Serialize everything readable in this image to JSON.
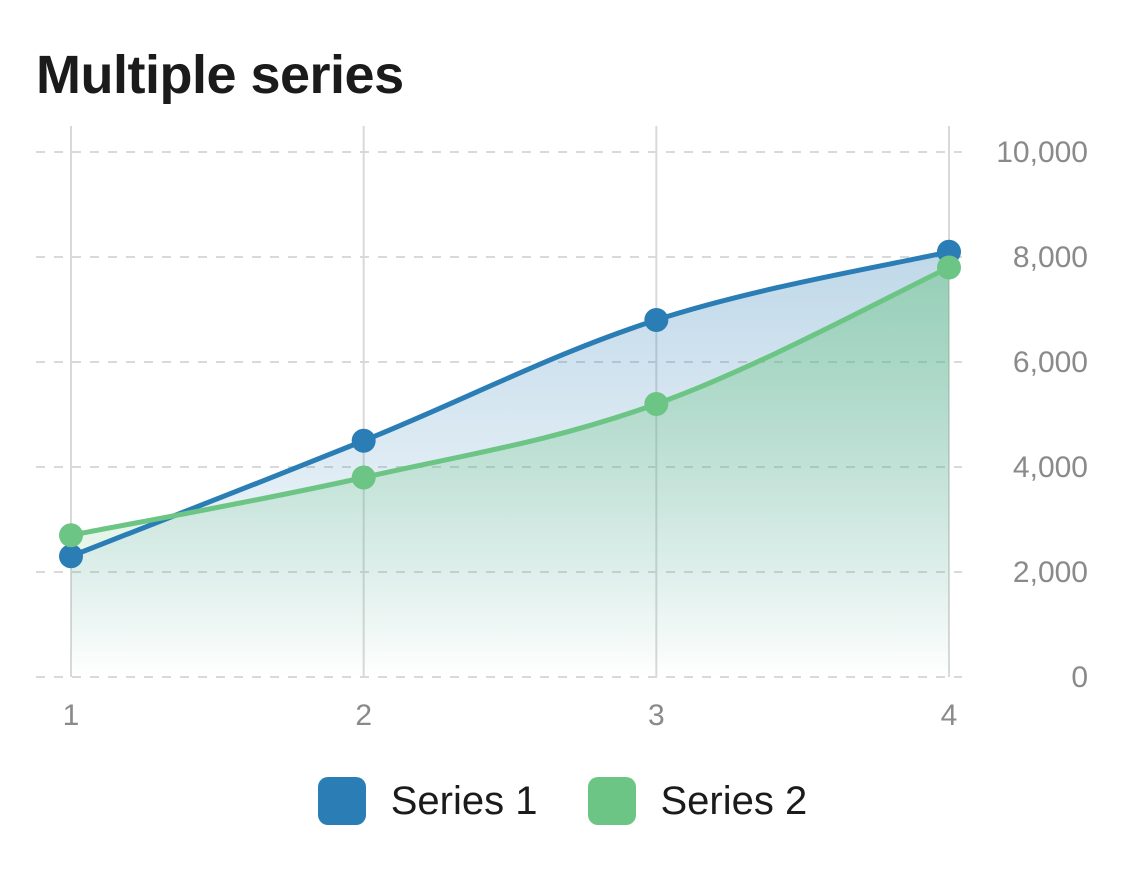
{
  "chart_data": {
    "type": "line",
    "title": "Multiple series",
    "x": [
      1,
      2,
      3,
      4
    ],
    "x_tick_labels": [
      "1",
      "2",
      "3",
      "4"
    ],
    "y_tick_labels": [
      "0",
      "2,000",
      "4,000",
      "6,000",
      "8,000",
      "10,000"
    ],
    "y_ticks": [
      0,
      2000,
      4000,
      6000,
      8000,
      10000
    ],
    "ylim": [
      0,
      10000
    ],
    "y_axis_side": "right",
    "grid": true,
    "smooth": true,
    "area_fill": true,
    "legend_position": "bottom",
    "series": [
      {
        "name": "Series 1",
        "color": "#2a7db5",
        "values": [
          2300,
          4500,
          6800,
          8100
        ]
      },
      {
        "name": "Series 2",
        "color": "#6cc584",
        "values": [
          2700,
          3800,
          5200,
          7800
        ]
      }
    ]
  }
}
